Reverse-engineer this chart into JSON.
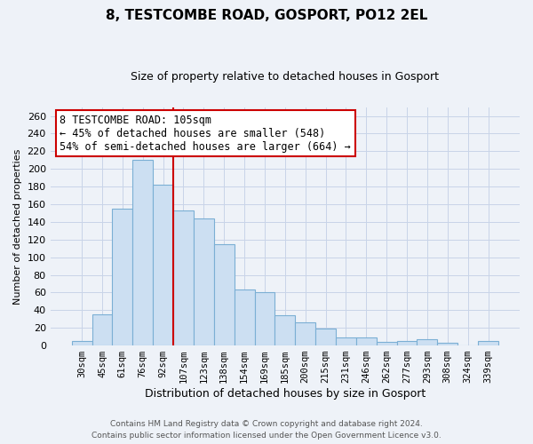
{
  "title": "8, TESTCOMBE ROAD, GOSPORT, PO12 2EL",
  "subtitle": "Size of property relative to detached houses in Gosport",
  "xlabel": "Distribution of detached houses by size in Gosport",
  "ylabel": "Number of detached properties",
  "bar_labels": [
    "30sqm",
    "45sqm",
    "61sqm",
    "76sqm",
    "92sqm",
    "107sqm",
    "123sqm",
    "138sqm",
    "154sqm",
    "169sqm",
    "185sqm",
    "200sqm",
    "215sqm",
    "231sqm",
    "246sqm",
    "262sqm",
    "277sqm",
    "293sqm",
    "308sqm",
    "324sqm",
    "339sqm"
  ],
  "bar_values": [
    5,
    35,
    155,
    210,
    182,
    153,
    144,
    115,
    63,
    60,
    34,
    26,
    19,
    9,
    9,
    4,
    5,
    7,
    3,
    0,
    5
  ],
  "bar_color": "#ccdff2",
  "bar_edge_color": "#7bafd4",
  "vline_color": "#cc0000",
  "annotation_line1": "8 TESTCOMBE ROAD: 105sqm",
  "annotation_line2": "← 45% of detached houses are smaller (548)",
  "annotation_line3": "54% of semi-detached houses are larger (664) →",
  "annotation_box_color": "white",
  "annotation_box_edge": "#cc0000",
  "ylim": [
    0,
    270
  ],
  "yticks": [
    0,
    20,
    40,
    60,
    80,
    100,
    120,
    140,
    160,
    180,
    200,
    220,
    240,
    260
  ],
  "footer_line1": "Contains HM Land Registry data © Crown copyright and database right 2024.",
  "footer_line2": "Contains public sector information licensed under the Open Government Licence v3.0.",
  "grid_color": "#c8d4e8",
  "background_color": "#eef2f8",
  "title_fontsize": 11,
  "subtitle_fontsize": 9,
  "ylabel_fontsize": 8,
  "xlabel_fontsize": 9,
  "tick_fontsize": 8,
  "xtick_fontsize": 7.5,
  "footer_fontsize": 6.5,
  "annotation_fontsize": 8.5
}
